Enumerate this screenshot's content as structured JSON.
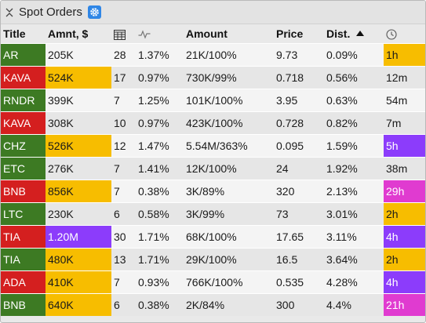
{
  "window": {
    "title": "Spot Orders"
  },
  "columns": {
    "title": "Title",
    "amount_usd": "Amnt, $",
    "count_icon": "grid-icon",
    "change_icon": "pulse-icon",
    "amount": "Amount",
    "price": "Price",
    "dist": "Dist.",
    "time_icon": "clock-icon"
  },
  "sort": {
    "column": "Dist.",
    "direction": "ascending"
  },
  "colors": {
    "green": "#3d7a23",
    "red": "#d41f1f",
    "yellow": "#f7bd00",
    "purple": "#8c3cfb",
    "magenta": "#e03bd0",
    "accent": "#2f86e6"
  },
  "rows": [
    {
      "title": "AR",
      "side": "green",
      "amnt": "205K",
      "amnt_color": "",
      "count": "28",
      "change": "1.37%",
      "amount": "21K/100%",
      "price": "9.73",
      "dist": "0.09%",
      "time": "1h",
      "time_color": "yellow"
    },
    {
      "title": "KAVA",
      "side": "red",
      "amnt": "524K",
      "amnt_color": "yellow",
      "count": "17",
      "change": "0.97%",
      "amount": "730K/99%",
      "price": "0.718",
      "dist": "0.56%",
      "time": "12m",
      "time_color": ""
    },
    {
      "title": "RNDR",
      "side": "green",
      "amnt": "399K",
      "amnt_color": "",
      "count": "7",
      "change": "1.25%",
      "amount": "101K/100%",
      "price": "3.95",
      "dist": "0.63%",
      "time": "54m",
      "time_color": ""
    },
    {
      "title": "KAVA",
      "side": "red",
      "amnt": "308K",
      "amnt_color": "",
      "count": "10",
      "change": "0.97%",
      "amount": "423K/100%",
      "price": "0.728",
      "dist": "0.82%",
      "time": "7m",
      "time_color": ""
    },
    {
      "title": "CHZ",
      "side": "green",
      "amnt": "526K",
      "amnt_color": "yellow",
      "count": "12",
      "change": "1.47%",
      "amount": "5.54M/363%",
      "price": "0.095",
      "dist": "1.59%",
      "time": "5h",
      "time_color": "purple"
    },
    {
      "title": "ETC",
      "side": "green",
      "amnt": "276K",
      "amnt_color": "",
      "count": "7",
      "change": "1.41%",
      "amount": "12K/100%",
      "price": "24",
      "dist": "1.92%",
      "time": "38m",
      "time_color": ""
    },
    {
      "title": "BNB",
      "side": "red",
      "amnt": "856K",
      "amnt_color": "yellow",
      "count": "7",
      "change": "0.38%",
      "amount": "3K/89%",
      "price": "320",
      "dist": "2.13%",
      "time": "29h",
      "time_color": "magenta"
    },
    {
      "title": "LTC",
      "side": "green",
      "amnt": "230K",
      "amnt_color": "",
      "count": "6",
      "change": "0.58%",
      "amount": "3K/99%",
      "price": "73",
      "dist": "3.01%",
      "time": "2h",
      "time_color": "yellow"
    },
    {
      "title": "TIA",
      "side": "red",
      "amnt": "1.20M",
      "amnt_color": "purple",
      "count": "30",
      "change": "1.71%",
      "amount": "68K/100%",
      "price": "17.65",
      "dist": "3.11%",
      "time": "4h",
      "time_color": "purple"
    },
    {
      "title": "TIA",
      "side": "green",
      "amnt": "480K",
      "amnt_color": "yellow",
      "count": "13",
      "change": "1.71%",
      "amount": "29K/100%",
      "price": "16.5",
      "dist": "3.64%",
      "time": "2h",
      "time_color": "yellow"
    },
    {
      "title": "ADA",
      "side": "red",
      "amnt": "410K",
      "amnt_color": "yellow",
      "count": "7",
      "change": "0.93%",
      "amount": "766K/100%",
      "price": "0.535",
      "dist": "4.28%",
      "time": "4h",
      "time_color": "purple"
    },
    {
      "title": "BNB",
      "side": "green",
      "amnt": "640K",
      "amnt_color": "yellow",
      "count": "6",
      "change": "0.38%",
      "amount": "2K/84%",
      "price": "300",
      "dist": "4.4%",
      "time": "21h",
      "time_color": "magenta"
    }
  ]
}
